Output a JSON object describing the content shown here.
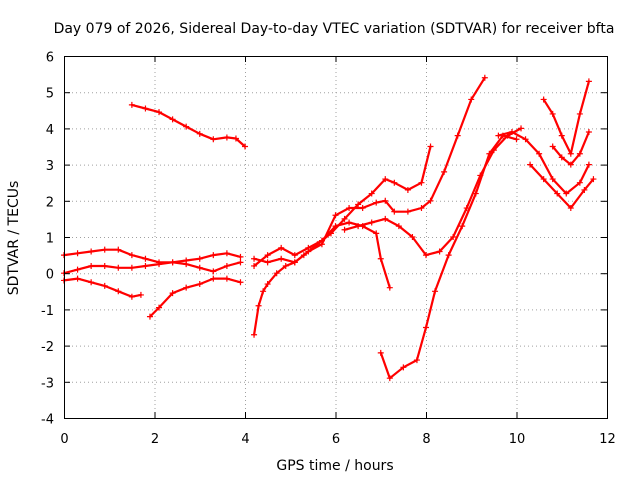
{
  "chart_data": {
    "type": "scatter",
    "title": "Day 079 of 2026, Sidereal Day-to-day VTEC variation (SDTVAR) for receiver bfta",
    "xlabel": "GPS time / hours",
    "ylabel": "SDTVAR / TECUs",
    "xlim": [
      0,
      12
    ],
    "ylim": [
      -4,
      6
    ],
    "xticks": [
      "0",
      "2",
      "4",
      "6",
      "8",
      "10",
      "12"
    ],
    "yticks": [
      "-4",
      "-3",
      "-2",
      "-1",
      "0",
      "1",
      "2",
      "3",
      "4",
      "5",
      "6"
    ],
    "grid": true,
    "legend": "none",
    "marker": "plus",
    "color": "#ff0000",
    "series": [
      {
        "x": [
          1.5,
          1.8,
          2.1,
          2.4,
          2.7,
          3.0,
          3.3,
          3.6,
          3.8,
          4.0
        ],
        "y": [
          4.65,
          4.55,
          4.45,
          4.25,
          4.05,
          3.85,
          3.7,
          3.75,
          3.72,
          3.5
        ]
      },
      {
        "x": [
          0.0,
          0.3,
          0.6,
          0.9,
          1.2,
          1.5,
          1.8,
          2.1,
          2.4,
          2.7,
          3.0,
          3.3,
          3.6,
          3.9
        ],
        "y": [
          0.5,
          0.55,
          0.6,
          0.65,
          0.65,
          0.5,
          0.4,
          0.3,
          0.3,
          0.35,
          0.4,
          0.5,
          0.55,
          0.45
        ]
      },
      {
        "x": [
          0.0,
          0.3,
          0.6,
          0.9,
          1.2,
          1.5,
          1.8,
          2.1,
          2.4,
          2.7,
          3.0,
          3.3,
          3.6,
          3.9
        ],
        "y": [
          0.0,
          0.1,
          0.2,
          0.2,
          0.15,
          0.15,
          0.2,
          0.25,
          0.3,
          0.25,
          0.15,
          0.05,
          0.2,
          0.3
        ]
      },
      {
        "x": [
          0.0,
          0.3,
          0.6,
          0.9,
          1.2,
          1.5,
          1.7
        ],
        "y": [
          -0.2,
          -0.15,
          -0.25,
          -0.35,
          -0.5,
          -0.65,
          -0.6
        ]
      },
      {
        "x": [
          1.9,
          2.1,
          2.4,
          2.7,
          3.0,
          3.3,
          3.6,
          3.9
        ],
        "y": [
          -1.2,
          -0.95,
          -0.55,
          -0.4,
          -0.3,
          -0.15,
          -0.15,
          -0.25
        ]
      },
      {
        "x": [
          4.2,
          4.3,
          4.4,
          4.5,
          4.7,
          4.9,
          5.1,
          5.3,
          5.6,
          5.9,
          6.2,
          6.5,
          6.8,
          7.1,
          7.3,
          7.6,
          7.9,
          8.1
        ],
        "y": [
          -1.7,
          -0.9,
          -0.5,
          -0.3,
          0.0,
          0.2,
          0.3,
          0.5,
          0.8,
          1.1,
          1.5,
          1.9,
          2.2,
          2.6,
          2.5,
          2.3,
          2.5,
          3.5
        ]
      },
      {
        "x": [
          4.2,
          4.5,
          4.8,
          5.1,
          5.4,
          5.7,
          6.0,
          6.3,
          6.6,
          6.9,
          7.1,
          7.3,
          7.6,
          7.9,
          8.1,
          8.4,
          8.7,
          9.0,
          9.3
        ],
        "y": [
          0.4,
          0.3,
          0.4,
          0.3,
          0.6,
          0.8,
          1.6,
          1.8,
          1.8,
          1.95,
          2.0,
          1.7,
          1.7,
          1.8,
          2.0,
          2.8,
          3.8,
          4.8,
          5.4
        ]
      },
      {
        "x": [
          4.2,
          4.5,
          4.8,
          5.1,
          5.4,
          5.7,
          6.0,
          6.3,
          6.6,
          6.9,
          7.0,
          7.2
        ],
        "y": [
          0.2,
          0.5,
          0.7,
          0.5,
          0.7,
          0.9,
          1.3,
          1.4,
          1.3,
          1.1,
          0.4,
          -0.4
        ]
      },
      {
        "x": [
          6.2,
          6.5,
          6.8,
          7.1,
          7.4,
          7.7,
          8.0,
          8.3,
          8.6,
          8.9,
          9.2,
          9.5,
          9.8,
          10.1
        ],
        "y": [
          1.2,
          1.3,
          1.4,
          1.5,
          1.3,
          1.0,
          0.5,
          0.6,
          1.0,
          1.8,
          2.7,
          3.4,
          3.8,
          4.0
        ]
      },
      {
        "x": [
          7.0,
          7.2,
          7.5,
          7.8,
          8.0,
          8.2,
          8.5,
          8.8,
          9.1,
          9.4,
          9.7,
          10.0
        ],
        "y": [
          -2.2,
          -2.9,
          -2.6,
          -2.4,
          -1.5,
          -0.5,
          0.5,
          1.3,
          2.2,
          3.3,
          3.8,
          3.7
        ]
      },
      {
        "x": [
          9.6,
          9.9,
          10.2,
          10.5,
          10.8,
          11.1,
          11.4,
          11.6
        ],
        "y": [
          3.8,
          3.9,
          3.7,
          3.3,
          2.6,
          2.2,
          2.5,
          3.0
        ]
      },
      {
        "x": [
          10.3,
          10.6,
          10.9,
          11.2,
          11.5,
          11.7
        ],
        "y": [
          3.0,
          2.6,
          2.2,
          1.8,
          2.3,
          2.6
        ]
      },
      {
        "x": [
          10.6,
          10.8,
          11.0,
          11.2,
          11.4,
          11.6
        ],
        "y": [
          4.8,
          4.4,
          3.8,
          3.3,
          4.4,
          5.3
        ]
      },
      {
        "x": [
          10.8,
          11.0,
          11.2,
          11.4,
          11.6
        ],
        "y": [
          3.5,
          3.2,
          3.0,
          3.3,
          3.9
        ]
      }
    ]
  }
}
